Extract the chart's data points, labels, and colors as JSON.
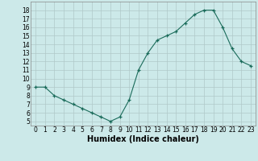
{
  "x": [
    0,
    1,
    2,
    3,
    4,
    5,
    6,
    7,
    8,
    9,
    10,
    11,
    12,
    13,
    14,
    15,
    16,
    17,
    18,
    19,
    20,
    21,
    22,
    23
  ],
  "y": [
    9,
    9,
    8,
    7.5,
    7,
    6.5,
    6,
    5.5,
    5,
    5.5,
    7.5,
    11,
    13,
    14.5,
    15,
    15.5,
    16.5,
    17.5,
    18,
    18,
    16,
    13.5,
    12,
    11.5
  ],
  "line_color": "#1a6b5a",
  "marker": "+",
  "marker_color": "#1a6b5a",
  "bg_color": "#cce9e9",
  "grid_color": "#b0c8c8",
  "xlabel": "Humidex (Indice chaleur)",
  "ylabel_ticks": [
    5,
    6,
    7,
    8,
    9,
    10,
    11,
    12,
    13,
    14,
    15,
    16,
    17,
    18
  ],
  "xlim": [
    -0.5,
    23.5
  ],
  "ylim": [
    4.5,
    19.0
  ],
  "xticks": [
    0,
    1,
    2,
    3,
    4,
    5,
    6,
    7,
    8,
    9,
    10,
    11,
    12,
    13,
    14,
    15,
    16,
    17,
    18,
    19,
    20,
    21,
    22,
    23
  ],
  "axis_fontsize": 6.5,
  "tick_fontsize": 5.5,
  "xlabel_fontsize": 7.0
}
